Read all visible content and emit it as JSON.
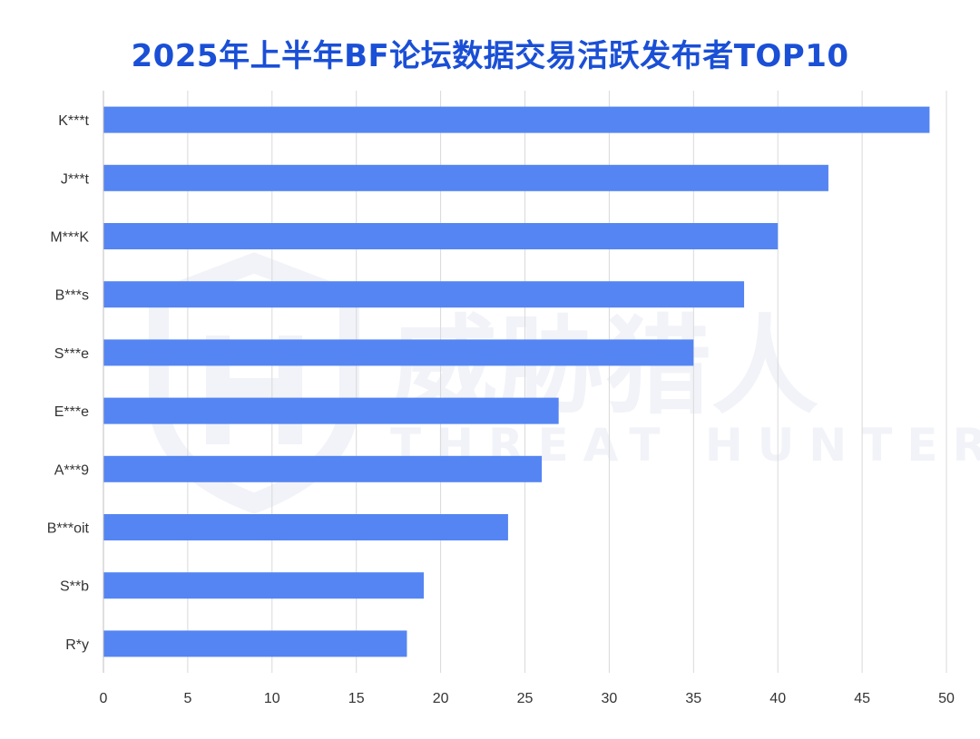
{
  "chart_data": {
    "type": "bar",
    "orientation": "horizontal",
    "title": "2025年上半年BF论坛数据交易活跃发布者TOP10",
    "categories": [
      "K***t",
      "J***t",
      "M***K",
      "B***s",
      "S***e",
      "E***e",
      "A***9",
      "B***oit",
      "S**b",
      "R*y"
    ],
    "values": [
      49,
      43,
      40,
      38,
      35,
      27,
      26,
      24,
      19,
      18
    ],
    "xlim": [
      0,
      50
    ],
    "xticks": [
      0,
      5,
      10,
      15,
      20,
      25,
      30,
      35,
      40,
      45,
      50
    ],
    "grid": true,
    "bar_color": "#5585f2",
    "title_color": "#1a4fd6",
    "watermark": {
      "logo": "shield-logo",
      "text": "威胁猎人",
      "subtext": "THREAT HUNTER"
    }
  }
}
